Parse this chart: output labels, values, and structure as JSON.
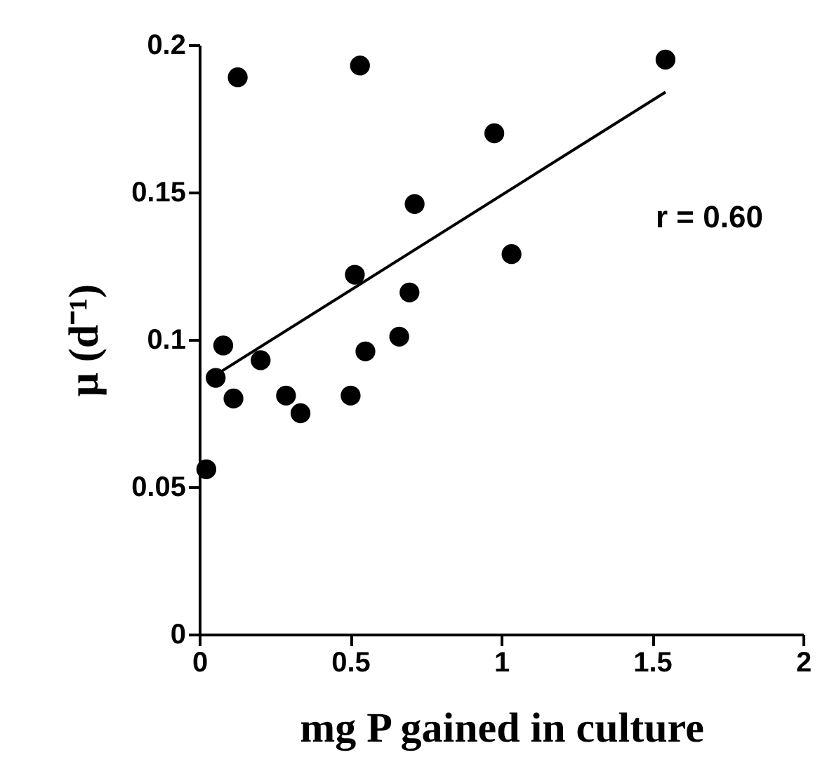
{
  "chart_data": {
    "type": "scatter",
    "xlabel": "mg P gained in culture",
    "ylabel": "μ (d⁻¹)",
    "xlim": [
      0,
      2
    ],
    "xticks": [
      0,
      0.5,
      1,
      1.5,
      2
    ],
    "ylim": [
      0,
      0.2
    ],
    "yticks": [
      0,
      0.05,
      0.1,
      0.15,
      0.2
    ],
    "grid": false,
    "annotations": [
      "r = 0.60"
    ],
    "series": [
      {
        "color": "#000000",
        "marker": "circle",
        "x": [
          0.023,
          0.054,
          0.079,
          0.113,
          0.127,
          0.203,
          0.287,
          0.335,
          0.501,
          0.515,
          0.532,
          0.55,
          0.662,
          0.696,
          0.713,
          0.977,
          1.034,
          1.544
        ],
        "values": [
          0.056,
          0.087,
          0.098,
          0.08,
          0.189,
          0.093,
          0.081,
          0.075,
          0.081,
          0.122,
          0.193,
          0.096,
          0.101,
          0.116,
          0.146,
          0.17,
          0.129,
          0.195
        ]
      },
      {
        "type": "line",
        "color": "#000000",
        "marker": "none",
        "line_style": "solid",
        "x": [
          0.054,
          1.544
        ],
        "values": [
          0.088,
          0.184
        ]
      }
    ]
  }
}
